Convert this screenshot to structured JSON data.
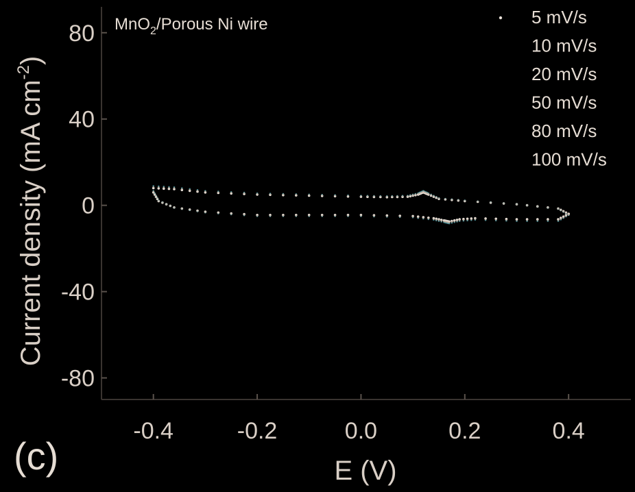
{
  "chart_data": {
    "type": "scatter",
    "annotation_main": "MnO",
    "annotation_sub": "2",
    "annotation_rest": "/Porous Ni wire",
    "panel_label": "(c)",
    "xlabel": "E (V)",
    "ylabel": "Current density (mA cm",
    "ylabel_sup": "-2",
    "ylabel_close": ")",
    "xlim": [
      -0.5,
      0.52
    ],
    "ylim": [
      -90,
      92
    ],
    "xticks": [
      -0.4,
      -0.2,
      0.0,
      0.2,
      0.4
    ],
    "xtick_labels": [
      "-0.4",
      "-0.2",
      "0.0",
      "0.2",
      "0.4"
    ],
    "yticks": [
      80,
      40,
      0,
      -40,
      -80
    ],
    "ytick_labels": [
      "80",
      "40",
      "0",
      "-40",
      "-80"
    ],
    "legend_position": "top-right",
    "series": [
      {
        "name": "5 mV/s",
        "color": "#e8e0d8",
        "anodic_x": [
          -0.4,
          -0.36,
          -0.3,
          -0.2,
          -0.1,
          0.0,
          0.05,
          0.09,
          0.11,
          0.12,
          0.13,
          0.15,
          0.2,
          0.3,
          0.38,
          0.4
        ],
        "anodic_y": [
          8,
          7.5,
          6,
          5,
          4.5,
          4,
          3.8,
          4,
          5,
          6,
          5,
          3,
          2,
          0.5,
          -1.5,
          -4
        ],
        "cathodic_x": [
          0.4,
          0.38,
          0.3,
          0.22,
          0.19,
          0.17,
          0.16,
          0.14,
          0.1,
          0.0,
          -0.1,
          -0.2,
          -0.3,
          -0.36,
          -0.39,
          -0.4
        ],
        "cathodic_y": [
          -4,
          -6.5,
          -6.5,
          -6,
          -6.5,
          -7.5,
          -7,
          -6,
          -5,
          -4.5,
          -4.5,
          -4.5,
          -3,
          -1,
          2,
          6
        ]
      },
      {
        "name": "10 mV/s",
        "color": "#5bb5c2",
        "scale": 1.12
      },
      {
        "name": "20 mV/s",
        "color": "#c8b0a0",
        "scale": 1.06
      },
      {
        "name": "50 mV/s",
        "color": "#d9cfc6",
        "scale": 1.0
      },
      {
        "name": "80 mV/s",
        "color": "#d9cfc6",
        "scale": 1.0
      },
      {
        "name": "100 mV/s",
        "color": "#d9cfc6",
        "scale": 1.0
      }
    ]
  }
}
